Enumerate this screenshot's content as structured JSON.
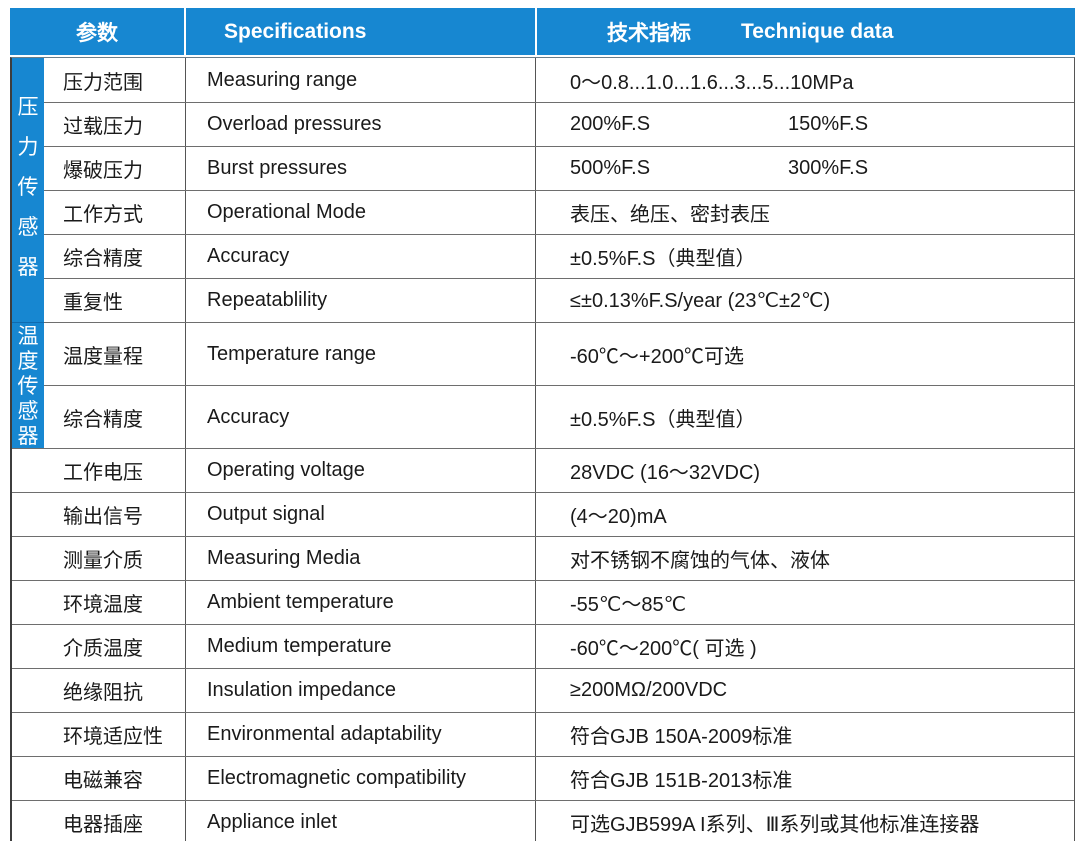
{
  "colors": {
    "accent_blue": "#1787d1",
    "grid_line": "#6e6e6e",
    "frame": "#3d3d3d",
    "body_text": "#1a1a1a",
    "header_text": "#ffffff"
  },
  "header": {
    "col_param": "参数",
    "col_spec": "Specifications",
    "col_value_zh": "技术指标",
    "col_value_en": "Technique data"
  },
  "groups": [
    {
      "label": "压力传感器",
      "row_span": 6
    },
    {
      "label": "温度传感器",
      "row_span": 2
    }
  ],
  "rows": [
    {
      "param": "压力范围",
      "spec": "Measuring range",
      "value": "0～0.8...1.0...1.6...3...5...10MPa",
      "group": "pressure"
    },
    {
      "param": "过载压力",
      "spec": "Overload pressures",
      "value": "200%F.S",
      "value2": "150%F.S",
      "group": "pressure"
    },
    {
      "param": "爆破压力",
      "spec": "Burst pressures",
      "value": "500%F.S",
      "value2": "300%F.S",
      "group": "pressure"
    },
    {
      "param": "工作方式",
      "spec": "Operational Mode",
      "value": "表压、绝压、密封表压",
      "group": "pressure"
    },
    {
      "param": "综合精度",
      "spec": "Accuracy",
      "value": "±0.5%F.S（典型值）",
      "group": "pressure"
    },
    {
      "param": "重复性",
      "spec": "Repeatablility",
      "value": "≤±0.13%F.S/year  (23℃±2℃)",
      "group": "pressure"
    },
    {
      "param": "温度量程",
      "spec": "Temperature range",
      "value": "-60℃～+200℃可选",
      "group": "temperature",
      "tall": true
    },
    {
      "param": "综合精度",
      "spec": "Accuracy",
      "value": "±0.5%F.S（典型值）",
      "group": "temperature",
      "tall": true
    },
    {
      "param": "工作电压",
      "spec": "Operating voltage",
      "value": "28VDC (16～32VDC)"
    },
    {
      "param": "输出信号",
      "spec": "Output signal",
      "value": "(4～20)mA"
    },
    {
      "param": "测量介质",
      "spec": "Measuring Media",
      "value": "对不锈钢不腐蚀的气体、液体"
    },
    {
      "param": "环境温度",
      "spec": "Ambient temperature",
      "value": "-55℃～85℃"
    },
    {
      "param": "介质温度",
      "spec": "Medium temperature",
      "value": "-60℃～200℃( 可选 )"
    },
    {
      "param": "绝缘阻抗",
      "spec": "Insulation impedance",
      "value": "≥200MΩ/200VDC"
    },
    {
      "param": "环境适应性",
      "spec": "Environmental  adaptability",
      "value": "符合GJB 150A-2009标准"
    },
    {
      "param": "电磁兼容",
      "spec": "Electromagnetic compatibility",
      "value": "符合GJB 151B-2013标准"
    },
    {
      "param": "电器插座",
      "spec": "Appliance inlet",
      "value": "可选GJB599A I系列、Ⅲ系列或其他标准连接器"
    }
  ]
}
